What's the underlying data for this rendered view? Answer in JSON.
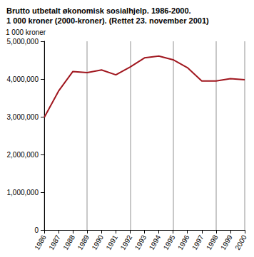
{
  "chart_data": {
    "type": "line",
    "title": "Brutto utbetalt økonomisk sosialhjelp. 1986-2000.\n1 000 kroner (2000-kroner). (Rettet 23. november 2001)",
    "y_label": "1 000 kroner",
    "categories": [
      "1986",
      "1987",
      "1988",
      "1989",
      "1990",
      "1991",
      "1992",
      "1993",
      "1994",
      "1995",
      "1996",
      "1997",
      "1998",
      "1999",
      "2000"
    ],
    "values": [
      2980000,
      3680000,
      4200000,
      4170000,
      4240000,
      4110000,
      4320000,
      4560000,
      4610000,
      4510000,
      4300000,
      3950000,
      3950000,
      4010000,
      3980000
    ],
    "color": "#a0161e",
    "ylim": [
      0,
      5000000
    ],
    "yticks": [
      0,
      1000000,
      2000000,
      3000000,
      4000000,
      5000000
    ],
    "grid": true
  }
}
